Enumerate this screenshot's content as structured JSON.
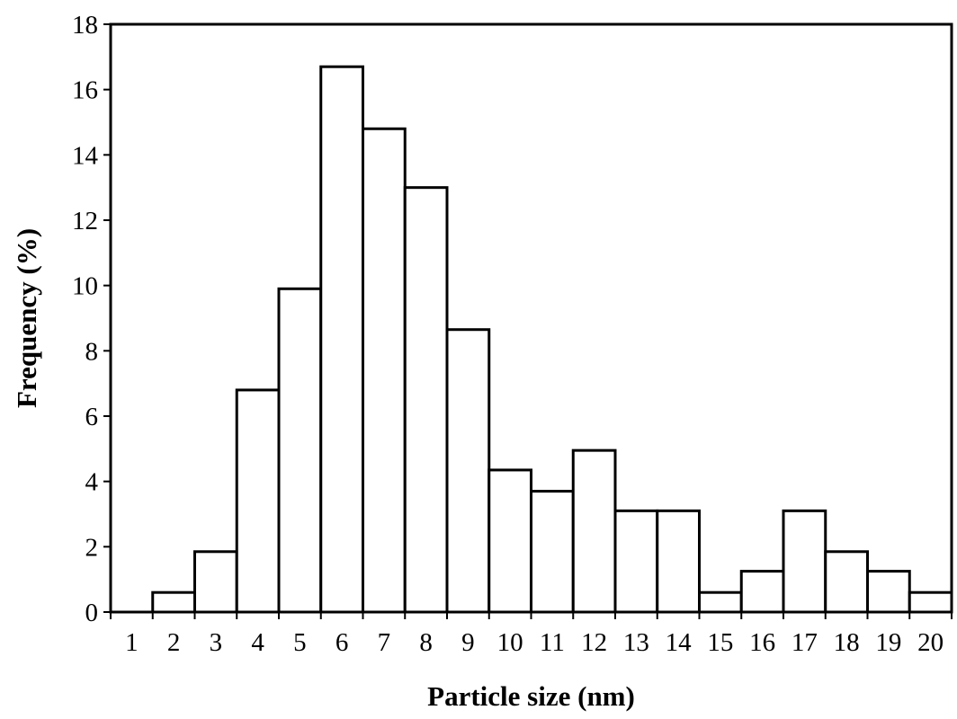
{
  "chart_data": {
    "type": "bar",
    "title": "",
    "xlabel": "Particle size (nm)",
    "ylabel": "Frequency (%)",
    "categories": [
      "1",
      "2",
      "3",
      "4",
      "5",
      "6",
      "7",
      "8",
      "9",
      "10",
      "11",
      "12",
      "13",
      "14",
      "15",
      "16",
      "17",
      "18",
      "19",
      "20"
    ],
    "values": [
      0,
      0.6,
      1.85,
      6.8,
      9.9,
      16.7,
      14.8,
      13.0,
      8.65,
      4.35,
      3.7,
      4.95,
      3.1,
      3.1,
      0.6,
      1.25,
      3.1,
      1.85,
      1.25,
      0.6
    ],
    "ylim": [
      0,
      18
    ],
    "yticks": [
      0,
      2,
      4,
      6,
      8,
      10,
      12,
      14,
      16,
      18
    ],
    "grid": false,
    "legend": "none",
    "bar_fill": "#ffffff",
    "bar_stroke": "#000000"
  }
}
